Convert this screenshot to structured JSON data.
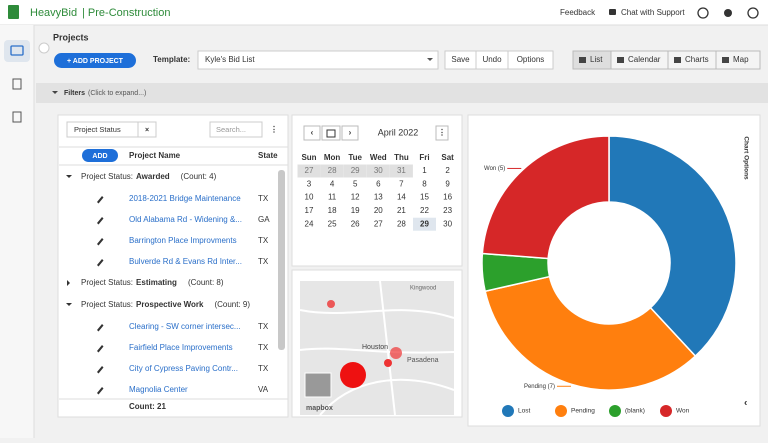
{
  "header": {
    "brand": "HeavyBid",
    "product": "| Pre-Construction",
    "links": [
      "Feedback",
      "Chat with Support"
    ]
  },
  "toolbar": {
    "title": "Projects",
    "add_button": "+ ADD PROJECT",
    "template_label": "Template:",
    "template_value": "Kyle's Bid List",
    "actions": [
      "Save",
      "Undo",
      "Options"
    ],
    "views": [
      "List",
      "Calendar",
      "Charts",
      "Map"
    ]
  },
  "filters": {
    "label": "Filters",
    "hint": "(Click to expand...)"
  },
  "grid": {
    "group_chip": "Project Status",
    "search_placeholder": "Search...",
    "add_button": "ADD",
    "columns": [
      "Project Name",
      "State"
    ],
    "groups": [
      {
        "prefix": "Project Status:",
        "name": "Awarded",
        "count": "(Count: 4)",
        "projects": [
          {
            "name": "2018-2021 Bridge Maintenance",
            "state": "TX"
          },
          {
            "name": "Old Alabama Rd - Widening &...",
            "state": "GA"
          },
          {
            "name": "Barrington Place Improvments",
            "state": "TX"
          },
          {
            "name": "Bulverde Rd & Evans Rd Inter...",
            "state": "TX"
          }
        ]
      },
      {
        "prefix": "Project Status:",
        "name": "Estimating",
        "count": "(Count: 8)",
        "projects": []
      },
      {
        "prefix": "Project Status:",
        "name": "Prospective Work",
        "count": "(Count: 9)",
        "projects": [
          {
            "name": "Clearing - SW corner intersec...",
            "state": "TX"
          },
          {
            "name": "Fairfield Place Improvements",
            "state": "TX"
          },
          {
            "name": "City of Cypress Paving Contr...",
            "state": "TX"
          },
          {
            "name": "Magnolia Center",
            "state": "VA"
          }
        ]
      }
    ],
    "footer": "Count: 21"
  },
  "calendar": {
    "month": "April 2022",
    "weekdays": [
      "Sun",
      "Mon",
      "Tue",
      "Wed",
      "Thu",
      "Fri",
      "Sat"
    ],
    "weeks": [
      [
        27,
        28,
        29,
        30,
        31,
        1,
        2
      ],
      [
        3,
        4,
        5,
        6,
        7,
        8,
        9
      ],
      [
        10,
        11,
        12,
        13,
        14,
        15,
        16
      ],
      [
        17,
        18,
        19,
        20,
        21,
        22,
        23
      ],
      [
        24,
        25,
        26,
        27,
        28,
        29,
        30
      ]
    ]
  },
  "map": {
    "places": [
      "Kingwood",
      "Houston",
      "Pasadena"
    ],
    "attribution": "mapbox"
  },
  "chart_data": {
    "type": "donut",
    "side_label": "Chart Options",
    "categories": [
      "Lost",
      "Pending",
      "(blank)",
      "Won"
    ],
    "values": [
      8,
      7,
      1,
      5
    ],
    "value_labels": [
      null,
      "Pending (7)",
      null,
      "Won (5)"
    ],
    "colors": [
      "#2178b8",
      "#ff7f0e",
      "#2ca02c",
      "#d62728"
    ],
    "legend": "bottom"
  }
}
